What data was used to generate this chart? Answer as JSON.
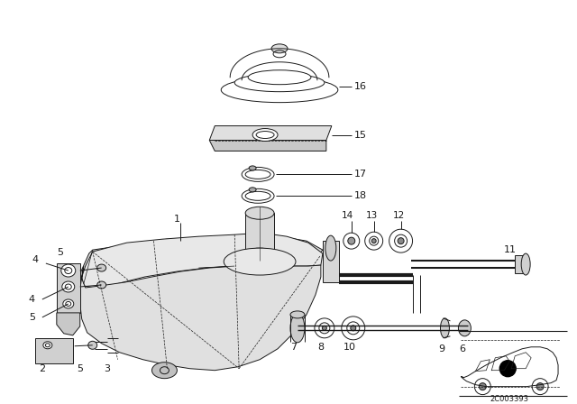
{
  "bg_color": "#ffffff",
  "lc": "#1a1a1a",
  "diagram_code": "2C003393",
  "figsize": [
    6.4,
    4.48
  ],
  "dpi": 100
}
